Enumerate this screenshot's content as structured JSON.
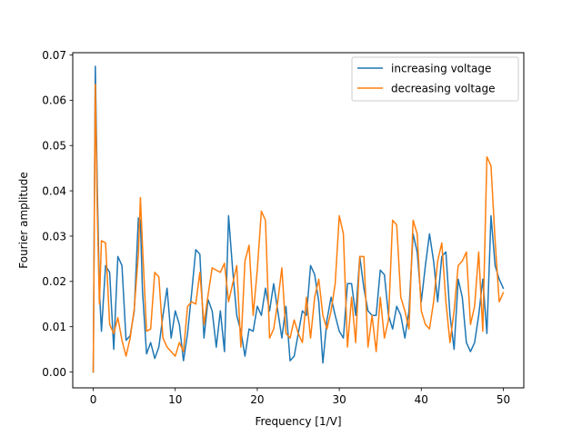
{
  "chart_data": {
    "type": "line",
    "title": "",
    "xlabel": "Frequency [1/V]",
    "ylabel": "Fourier amplitude",
    "xlim": [
      -2.5,
      52.5
    ],
    "ylim": [
      -0.0035,
      0.0705
    ],
    "xticks": [
      0,
      10,
      20,
      30,
      40,
      50
    ],
    "xtick_labels": [
      "0",
      "10",
      "20",
      "30",
      "40",
      "50"
    ],
    "yticks": [
      0.0,
      0.01,
      0.02,
      0.03,
      0.04,
      0.05,
      0.06,
      0.07
    ],
    "ytick_labels": [
      "0.00",
      "0.01",
      "0.02",
      "0.03",
      "0.04",
      "0.05",
      "0.06",
      "0.07"
    ],
    "grid": false,
    "legend_position": "upper right",
    "series": [
      {
        "name": "increasing voltage",
        "color": "#1f77b4",
        "x": [
          0.0,
          0.25,
          0.5,
          0.75,
          1.0,
          1.5,
          2.0,
          2.5,
          3.0,
          3.5,
          4.0,
          4.5,
          5.0,
          5.5,
          5.75,
          6.0,
          6.5,
          7.0,
          7.5,
          8.0,
          8.5,
          9.0,
          9.5,
          10.0,
          10.5,
          11.0,
          11.5,
          12.0,
          12.5,
          13.0,
          13.5,
          14.0,
          14.5,
          15.0,
          15.5,
          16.0,
          16.5,
          17.0,
          17.5,
          18.0,
          18.5,
          19.0,
          19.5,
          20.0,
          20.5,
          21.0,
          21.5,
          22.0,
          22.5,
          23.0,
          23.5,
          24.0,
          24.5,
          25.0,
          25.5,
          26.0,
          26.5,
          27.0,
          27.5,
          28.0,
          28.5,
          29.0,
          29.5,
          30.0,
          30.5,
          31.0,
          31.5,
          32.0,
          32.5,
          33.0,
          33.5,
          34.0,
          34.5,
          35.0,
          35.5,
          36.0,
          36.5,
          37.0,
          37.5,
          38.0,
          38.5,
          39.0,
          39.5,
          40.0,
          40.5,
          41.0,
          41.5,
          42.0,
          42.5,
          43.0,
          43.5,
          44.0,
          44.5,
          45.0,
          45.5,
          46.0,
          46.5,
          47.0,
          47.5,
          48.0,
          48.5,
          49.0,
          49.5,
          50.0
        ],
        "values": [
          0.0,
          0.0675,
          0.04,
          0.018,
          0.009,
          0.0235,
          0.022,
          0.005,
          0.0255,
          0.0235,
          0.007,
          0.008,
          0.0135,
          0.034,
          0.0335,
          0.018,
          0.004,
          0.0065,
          0.003,
          0.0055,
          0.0125,
          0.0185,
          0.0075,
          0.0135,
          0.0105,
          0.0025,
          0.0085,
          0.0175,
          0.027,
          0.026,
          0.0075,
          0.016,
          0.0135,
          0.0055,
          0.0135,
          0.0045,
          0.0345,
          0.0225,
          0.0125,
          0.009,
          0.0035,
          0.0095,
          0.009,
          0.0145,
          0.0125,
          0.0185,
          0.0135,
          0.0195,
          0.0135,
          0.0075,
          0.0145,
          0.0025,
          0.0035,
          0.0085,
          0.0135,
          0.0125,
          0.0235,
          0.0215,
          0.0155,
          0.002,
          0.0115,
          0.0165,
          0.0125,
          0.009,
          0.0075,
          0.0195,
          0.0195,
          0.0125,
          0.0255,
          0.0185,
          0.0135,
          0.0125,
          0.0125,
          0.0225,
          0.0215,
          0.0125,
          0.0095,
          0.0145,
          0.0125,
          0.0075,
          0.0135,
          0.0305,
          0.0265,
          0.0155,
          0.0235,
          0.0305,
          0.0245,
          0.0155,
          0.0255,
          0.0265,
          0.0125,
          0.005,
          0.0205,
          0.0165,
          0.0065,
          0.0045,
          0.0065,
          0.0125,
          0.0205,
          0.0085,
          0.0345,
          0.0235,
          0.0205,
          0.0185
        ]
      },
      {
        "name": "decreasing voltage",
        "color": "#ff7f0e",
        "x": [
          0.0,
          0.25,
          0.5,
          0.75,
          1.0,
          1.5,
          2.0,
          2.5,
          3.0,
          3.5,
          4.0,
          4.5,
          5.0,
          5.5,
          5.75,
          6.0,
          6.5,
          7.0,
          7.5,
          8.0,
          8.5,
          9.0,
          9.5,
          10.0,
          10.5,
          11.0,
          11.5,
          12.0,
          12.5,
          13.0,
          13.5,
          14.0,
          14.5,
          15.0,
          15.5,
          16.0,
          16.5,
          17.0,
          17.5,
          18.0,
          18.5,
          19.0,
          19.5,
          20.0,
          20.5,
          21.0,
          21.5,
          22.0,
          22.5,
          23.0,
          23.5,
          24.0,
          24.5,
          25.0,
          25.5,
          26.0,
          26.5,
          27.0,
          27.5,
          28.0,
          28.5,
          29.0,
          29.5,
          30.0,
          30.5,
          31.0,
          31.5,
          32.0,
          32.5,
          33.0,
          33.5,
          34.0,
          34.5,
          35.0,
          35.5,
          36.0,
          36.5,
          37.0,
          37.5,
          38.0,
          38.5,
          39.0,
          39.5,
          40.0,
          40.5,
          41.0,
          41.5,
          42.0,
          42.5,
          43.0,
          43.5,
          44.0,
          44.5,
          45.0,
          45.5,
          46.0,
          46.5,
          47.0,
          47.5,
          48.0,
          48.5,
          49.0,
          49.5,
          50.0
        ],
        "values": [
          0.0,
          0.0635,
          0.035,
          0.015,
          0.029,
          0.0285,
          0.0105,
          0.0085,
          0.012,
          0.007,
          0.0035,
          0.0075,
          0.014,
          0.026,
          0.0385,
          0.028,
          0.009,
          0.0095,
          0.022,
          0.021,
          0.0075,
          0.0055,
          0.0045,
          0.0035,
          0.0065,
          0.0045,
          0.0145,
          0.0155,
          0.015,
          0.022,
          0.0105,
          0.017,
          0.023,
          0.0225,
          0.022,
          0.024,
          0.0155,
          0.0195,
          0.0235,
          0.0055,
          0.0245,
          0.028,
          0.0125,
          0.0225,
          0.0355,
          0.0335,
          0.0075,
          0.0095,
          0.0155,
          0.023,
          0.0085,
          0.0075,
          0.0115,
          0.0085,
          0.0065,
          0.0165,
          0.0075,
          0.0165,
          0.0205,
          0.0125,
          0.0095,
          0.0135,
          0.0195,
          0.0345,
          0.0305,
          0.0055,
          0.0165,
          0.0065,
          0.0255,
          0.0255,
          0.0055,
          0.0125,
          0.0045,
          0.0165,
          0.0075,
          0.0115,
          0.0335,
          0.0325,
          0.0165,
          0.0135,
          0.0095,
          0.0335,
          0.0305,
          0.0135,
          0.0105,
          0.0095,
          0.0155,
          0.0245,
          0.0285,
          0.0155,
          0.0065,
          0.0135,
          0.0235,
          0.0245,
          0.0265,
          0.0105,
          0.0145,
          0.0265,
          0.009,
          0.0475,
          0.0455,
          0.029,
          0.0155,
          0.0175
        ]
      }
    ]
  }
}
